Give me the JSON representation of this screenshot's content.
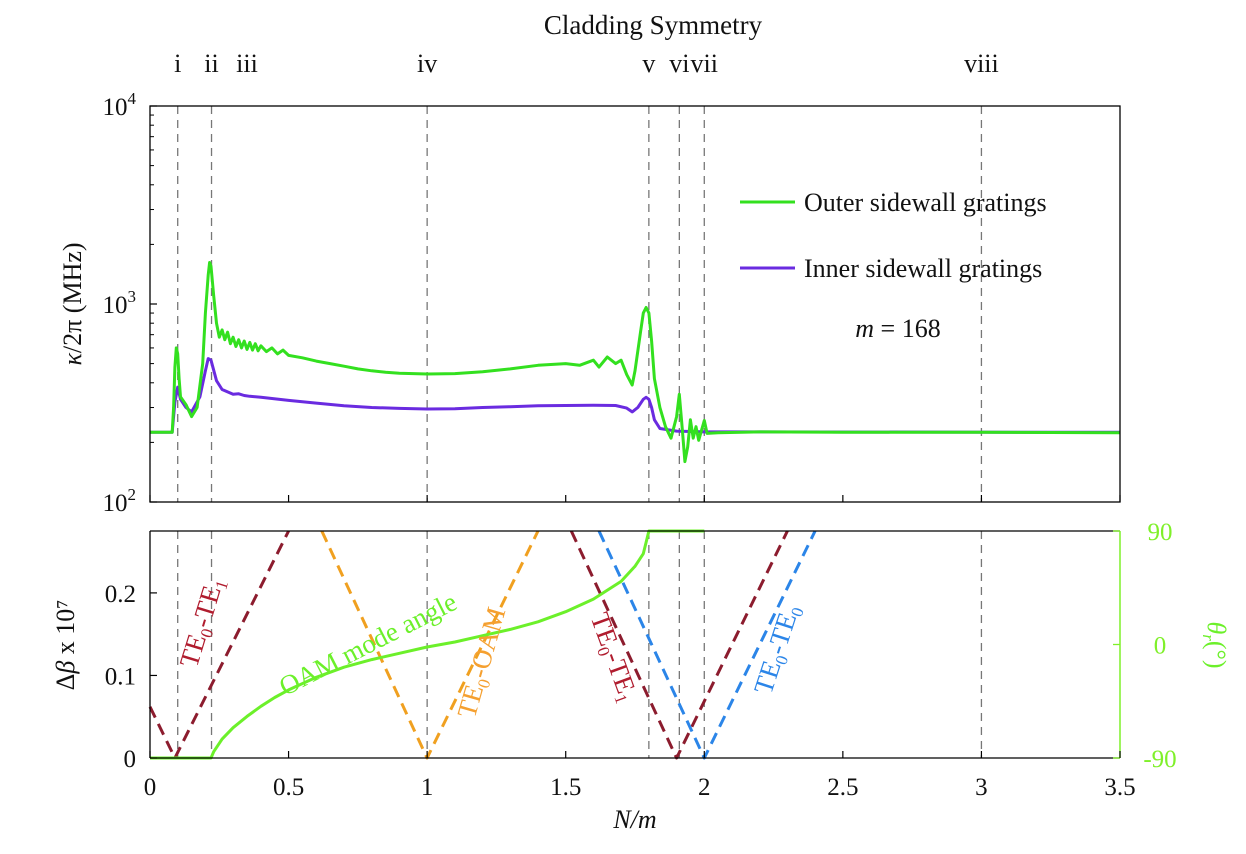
{
  "chart_data": {
    "type": "line",
    "title": "Cladding Symmetry",
    "xlabel": "N/m",
    "xlim": [
      0,
      3.5
    ],
    "xticks": [
      {
        "value": 0,
        "label": "0"
      },
      {
        "value": 0.5,
        "label": "0.5"
      },
      {
        "value": 1,
        "label": "1"
      },
      {
        "value": 1.5,
        "label": "1.5"
      },
      {
        "value": 2,
        "label": "2"
      },
      {
        "value": 2.5,
        "label": "2.5"
      },
      {
        "value": 3,
        "label": "3"
      },
      {
        "value": 3.5,
        "label": "3.5"
      }
    ],
    "symmetry_points": [
      {
        "label": "i",
        "x": 0.1
      },
      {
        "label": "ii",
        "x": 0.222
      },
      {
        "label": "iii",
        "x": 0.35
      },
      {
        "label": "iv",
        "x": 1.0
      },
      {
        "label": "v",
        "x": 1.8
      },
      {
        "label": "vi",
        "x": 1.91
      },
      {
        "label": "vii",
        "x": 2.0
      },
      {
        "label": "viii",
        "x": 3.0
      }
    ],
    "top_panel": {
      "yscale": "log",
      "ylabel": "κ/2π (MHz)",
      "ylim": [
        100,
        10000
      ],
      "yticks": [
        {
          "value": 100,
          "base": "10",
          "exp": "2"
        },
        {
          "value": 1000,
          "base": "10",
          "exp": "3"
        },
        {
          "value": 10000,
          "base": "10",
          "exp": "4"
        }
      ],
      "legend": {
        "position": "top-right",
        "param_var": "m",
        "param_rest": " = 168"
      },
      "series": [
        {
          "name": "Inner sidewall gratings",
          "color": "#6a2be0",
          "points": [
            [
              0,
              225
            ],
            [
              0.08,
              225
            ],
            [
              0.09,
              320
            ],
            [
              0.1,
              380
            ],
            [
              0.11,
              330
            ],
            [
              0.13,
              300
            ],
            [
              0.15,
              285
            ],
            [
              0.18,
              340
            ],
            [
              0.2,
              460
            ],
            [
              0.21,
              530
            ],
            [
              0.22,
              520
            ],
            [
              0.24,
              410
            ],
            [
              0.26,
              370
            ],
            [
              0.28,
              360
            ],
            [
              0.3,
              350
            ],
            [
              0.32,
              352
            ],
            [
              0.34,
              345
            ],
            [
              0.36,
              342
            ],
            [
              0.4,
              338
            ],
            [
              0.5,
              326
            ],
            [
              0.6,
              316
            ],
            [
              0.7,
              306
            ],
            [
              0.8,
              300
            ],
            [
              0.9,
              297
            ],
            [
              1.0,
              295
            ],
            [
              1.1,
              296
            ],
            [
              1.2,
              300
            ],
            [
              1.3,
              303
            ],
            [
              1.4,
              306
            ],
            [
              1.5,
              307
            ],
            [
              1.6,
              308
            ],
            [
              1.68,
              307
            ],
            [
              1.72,
              298
            ],
            [
              1.74,
              285
            ],
            [
              1.76,
              300
            ],
            [
              1.78,
              330
            ],
            [
              1.79,
              338
            ],
            [
              1.8,
              330
            ],
            [
              1.81,
              300
            ],
            [
              1.82,
              260
            ],
            [
              1.84,
              235
            ],
            [
              1.9,
              228
            ],
            [
              2.0,
              226
            ],
            [
              2.1,
              226
            ],
            [
              3.5,
              225
            ]
          ]
        },
        {
          "name": "Outer sidewall gratings",
          "color": "#33e01f",
          "points": [
            [
              0,
              225
            ],
            [
              0.08,
              225
            ],
            [
              0.085,
              300
            ],
            [
              0.09,
              480
            ],
            [
              0.095,
              600
            ],
            [
              0.1,
              560
            ],
            [
              0.105,
              420
            ],
            [
              0.11,
              340
            ],
            [
              0.13,
              310
            ],
            [
              0.15,
              270
            ],
            [
              0.17,
              300
            ],
            [
              0.19,
              500
            ],
            [
              0.2,
              900
            ],
            [
              0.21,
              1400
            ],
            [
              0.215,
              1620
            ],
            [
              0.22,
              1550
            ],
            [
              0.23,
              1100
            ],
            [
              0.24,
              800
            ],
            [
              0.25,
              680
            ],
            [
              0.26,
              740
            ],
            [
              0.27,
              660
            ],
            [
              0.28,
              720
            ],
            [
              0.29,
              630
            ],
            [
              0.3,
              680
            ],
            [
              0.31,
              610
            ],
            [
              0.32,
              660
            ],
            [
              0.33,
              600
            ],
            [
              0.34,
              650
            ],
            [
              0.35,
              590
            ],
            [
              0.36,
              640
            ],
            [
              0.37,
              585
            ],
            [
              0.38,
              630
            ],
            [
              0.39,
              580
            ],
            [
              0.4,
              615
            ],
            [
              0.42,
              575
            ],
            [
              0.44,
              600
            ],
            [
              0.46,
              560
            ],
            [
              0.48,
              585
            ],
            [
              0.5,
              550
            ],
            [
              0.55,
              535
            ],
            [
              0.6,
              515
            ],
            [
              0.65,
              500
            ],
            [
              0.7,
              485
            ],
            [
              0.75,
              470
            ],
            [
              0.8,
              460
            ],
            [
              0.85,
              452
            ],
            [
              0.9,
              447
            ],
            [
              1.0,
              443
            ],
            [
              1.1,
              445
            ],
            [
              1.2,
              455
            ],
            [
              1.3,
              470
            ],
            [
              1.4,
              490
            ],
            [
              1.5,
              500
            ],
            [
              1.55,
              490
            ],
            [
              1.6,
              520
            ],
            [
              1.62,
              480
            ],
            [
              1.65,
              540
            ],
            [
              1.68,
              500
            ],
            [
              1.7,
              520
            ],
            [
              1.72,
              440
            ],
            [
              1.74,
              390
            ],
            [
              1.75,
              460
            ],
            [
              1.77,
              720
            ],
            [
              1.78,
              900
            ],
            [
              1.79,
              960
            ],
            [
              1.8,
              900
            ],
            [
              1.81,
              650
            ],
            [
              1.82,
              420
            ],
            [
              1.84,
              300
            ],
            [
              1.86,
              240
            ],
            [
              1.88,
              210
            ],
            [
              1.9,
              270
            ],
            [
              1.91,
              350
            ],
            [
              1.92,
              240
            ],
            [
              1.93,
              160
            ],
            [
              1.94,
              190
            ],
            [
              1.95,
              260
            ],
            [
              1.96,
              210
            ],
            [
              1.97,
              240
            ],
            [
              1.98,
              205
            ],
            [
              1.99,
              230
            ],
            [
              2.0,
              258
            ],
            [
              2.01,
              222
            ],
            [
              2.05,
              224
            ],
            [
              2.2,
              226
            ],
            [
              2.5,
              225
            ],
            [
              3.0,
              225
            ],
            [
              3.5,
              224
            ]
          ]
        }
      ]
    },
    "bottom_panel": {
      "ylabel": "Δβ x 10⁷",
      "ylim": [
        0,
        0.275
      ],
      "yticks": [
        {
          "value": 0,
          "label": "0"
        },
        {
          "value": 0.1,
          "label": "0.1"
        },
        {
          "value": 0.2,
          "label": "0.2"
        }
      ],
      "y2label": "θr(°)",
      "y2lim": [
        -90,
        90
      ],
      "y2ticks": [
        {
          "value": -90,
          "label": "-90"
        },
        {
          "value": 0,
          "label": "0"
        },
        {
          "value": 90,
          "label": "90"
        }
      ],
      "lines": [
        {
          "name": "TE0-TE1",
          "color": "#8c1c2e",
          "dashed": true,
          "axis": "left",
          "points": [
            [
              0,
              0.062
            ],
            [
              0.09,
              0
            ],
            [
              0.5,
              0.28
            ]
          ]
        },
        {
          "name": "TE0-OAM",
          "color": "#f0a020",
          "dashed": true,
          "axis": "left",
          "points": [
            [
              0.62,
              0.275
            ],
            [
              1.0,
              0
            ],
            [
              1.4,
              0.275
            ]
          ]
        },
        {
          "name": "TE0-TE1",
          "color": "#8c1c2e",
          "dashed": true,
          "axis": "left",
          "points": [
            [
              1.52,
              0.275
            ],
            [
              1.9,
              0
            ],
            [
              2.3,
              0.28
            ]
          ]
        },
        {
          "name": "TE0-TE0",
          "color": "#2b85e8",
          "dashed": true,
          "axis": "left",
          "points": [
            [
              1.62,
              0.275
            ],
            [
              2.0,
              0
            ],
            [
              2.4,
              0.28
            ]
          ]
        },
        {
          "name": "OAM mode angle",
          "color": "#6cf02a",
          "dashed": false,
          "axis": "right",
          "points": [
            [
              0,
              -90
            ],
            [
              0.22,
              -90
            ],
            [
              0.23,
              -85
            ],
            [
              0.26,
              -75
            ],
            [
              0.3,
              -66
            ],
            [
              0.35,
              -57
            ],
            [
              0.4,
              -49
            ],
            [
              0.45,
              -42
            ],
            [
              0.5,
              -36
            ],
            [
              0.6,
              -26
            ],
            [
              0.7,
              -18
            ],
            [
              0.8,
              -12
            ],
            [
              0.9,
              -7
            ],
            [
              1.0,
              -2
            ],
            [
              1.1,
              2
            ],
            [
              1.2,
              7
            ],
            [
              1.3,
              12
            ],
            [
              1.4,
              18
            ],
            [
              1.5,
              26
            ],
            [
              1.6,
              36
            ],
            [
              1.7,
              50
            ],
            [
              1.75,
              62
            ],
            [
              1.78,
              72
            ],
            [
              1.8,
              90
            ],
            [
              2.0,
              90
            ]
          ]
        }
      ],
      "annotations": [
        {
          "base": "TE",
          "sub1": "0",
          "mid": "-TE",
          "sub2": "1",
          "color": "#b01c2e"
        },
        {
          "text": "OAM mode angle",
          "color": "#6cf02a"
        },
        {
          "base": "TE",
          "sub1": "0",
          "mid": "-OAM",
          "sub2": "",
          "color": "#f5a030"
        },
        {
          "base": "TE",
          "sub1": "0",
          "mid": "-TE",
          "sub2": "1",
          "color": "#b01c2e"
        },
        {
          "base": "TE",
          "sub1": "0",
          "mid": "-TE",
          "sub2": "0",
          "color": "#2b85e8"
        }
      ]
    }
  }
}
